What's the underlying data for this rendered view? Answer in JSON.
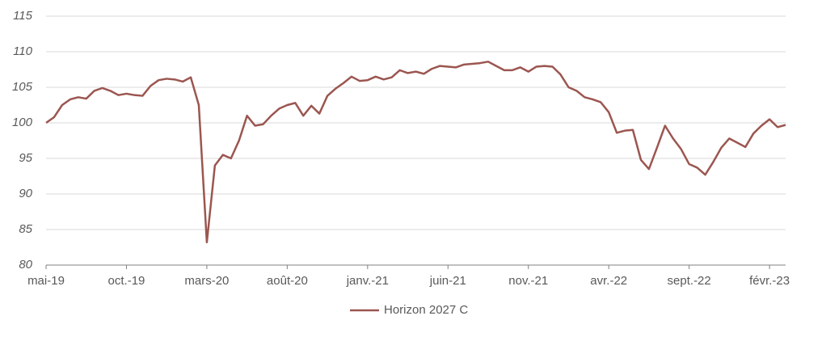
{
  "chart_data": {
    "type": "line",
    "categories": [
      "mai-19",
      null,
      null,
      null,
      null,
      null,
      null,
      null,
      null,
      null,
      "oct.-19",
      null,
      null,
      null,
      null,
      null,
      null,
      null,
      null,
      null,
      "mars-20",
      null,
      null,
      null,
      null,
      null,
      null,
      null,
      null,
      null,
      "août-20",
      null,
      null,
      null,
      null,
      null,
      null,
      null,
      null,
      null,
      "janv.-21",
      null,
      null,
      null,
      null,
      null,
      null,
      null,
      null,
      null,
      "juin-21",
      null,
      null,
      null,
      null,
      null,
      null,
      null,
      null,
      null,
      "nov.-21",
      null,
      null,
      null,
      null,
      null,
      null,
      null,
      null,
      null,
      "avr.-22",
      null,
      null,
      null,
      null,
      null,
      null,
      null,
      null,
      null,
      "sept.-22",
      null,
      null,
      null,
      null,
      null,
      null,
      null,
      null,
      null,
      "févr.-23",
      null,
      null
    ],
    "series": [
      {
        "name": "Horizon 2027 C",
        "color": "#9b5650",
        "values": [
          100,
          100.8,
          102.5,
          103.3,
          103.6,
          103.4,
          104.5,
          104.9,
          104.5,
          103.9,
          104.1,
          103.9,
          103.8,
          105.2,
          106.0,
          106.2,
          106.1,
          105.8,
          106.4,
          102.5,
          83.2,
          94.0,
          95.5,
          95.0,
          97.5,
          101.0,
          99.6,
          99.8,
          101.0,
          102.0,
          102.5,
          102.8,
          101.0,
          102.4,
          101.3,
          103.8,
          104.8,
          105.6,
          106.5,
          105.9,
          106.0,
          106.5,
          106.1,
          106.4,
          107.4,
          107.0,
          107.2,
          106.9,
          107.6,
          108.0,
          107.9,
          107.8,
          108.2,
          108.3,
          108.4,
          108.6,
          108.0,
          107.4,
          107.4,
          107.8,
          107.2,
          107.9,
          108.0,
          107.9,
          106.8,
          105.0,
          104.5,
          103.6,
          103.3,
          102.9,
          101.5,
          98.6,
          98.9,
          99.0,
          94.8,
          93.5,
          96.5,
          99.6,
          97.8,
          96.3,
          94.2,
          93.7,
          92.7,
          94.5,
          96.5,
          97.8,
          97.2,
          96.6,
          98.5,
          99.6,
          100.5,
          99.4,
          99.7
        ]
      }
    ],
    "ylim": [
      80,
      115
    ],
    "yticks": [
      80,
      85,
      90,
      95,
      100,
      105,
      110,
      115
    ],
    "grid": true
  }
}
